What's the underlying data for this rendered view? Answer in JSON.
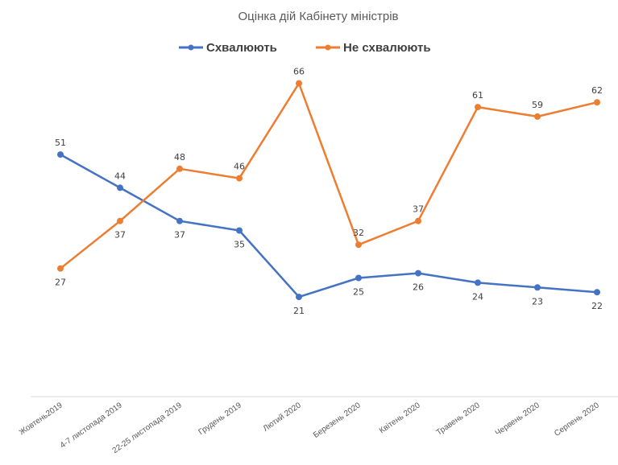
{
  "chart_data": {
    "type": "line",
    "title": "Оцінка дій Кабінету міністрів",
    "legend_position": "top-center",
    "grid": false,
    "categories": [
      "Жовтень2019",
      "4-7 листопада 2019",
      "22-25 листопада 2019",
      "Грудень 2019",
      "Лютий 2020",
      "Березень 2020",
      "Квітень 2020",
      "Травень 2020",
      "Червень 2020",
      "Серпень 2020"
    ],
    "series": [
      {
        "name": "Схвалюють",
        "color": "#4472c4",
        "values": [
          51,
          44,
          37,
          35,
          21,
          25,
          26,
          24,
          23,
          22
        ]
      },
      {
        "name": "Не схвалюють",
        "color": "#ed7d31",
        "values": [
          27,
          37,
          48,
          46,
          66,
          32,
          37,
          61,
          59,
          62
        ]
      }
    ],
    "ylim": [
      0,
      80
    ],
    "xlabel": "",
    "ylabel": ""
  }
}
